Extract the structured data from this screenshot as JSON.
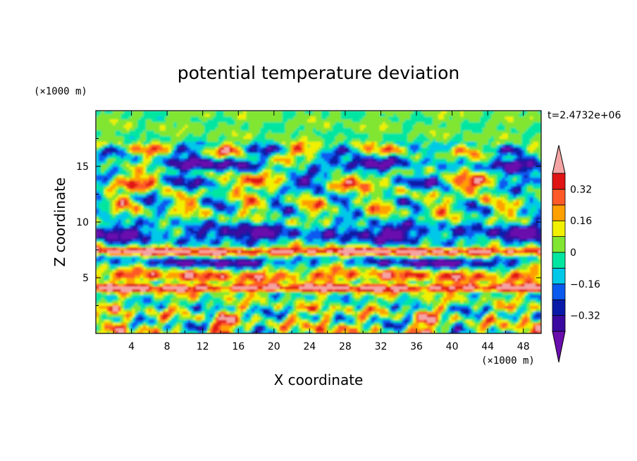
{
  "chart_data": {
    "type": "heatmap",
    "title": "potential temperature deviation",
    "xlabel": "X coordinate",
    "ylabel": "Z coordinate",
    "x_unit": "(×1000 m)",
    "y_unit": "(×1000 m)",
    "time_label": "t=2.4732e+06",
    "xlim": [
      0,
      50
    ],
    "ylim": [
      0,
      20
    ],
    "x_ticks": [
      4,
      8,
      12,
      16,
      20,
      24,
      28,
      32,
      36,
      40,
      44,
      48
    ],
    "y_ticks": [
      5,
      10,
      15
    ],
    "colorbar": {
      "levels": [
        -0.4,
        -0.32,
        -0.24,
        -0.16,
        -0.08,
        0,
        0.08,
        0.16,
        0.24,
        0.32,
        0.4
      ],
      "tick_labels": [
        "0.32",
        "0.16",
        "0",
        "−0.16",
        "−0.32"
      ],
      "tick_values": [
        0.32,
        0.16,
        0,
        -0.16,
        -0.32
      ],
      "colors_low_to_high": [
        "#6a0dad",
        "#3a0aa0",
        "#0a1aa8",
        "#0a5af0",
        "#00c8e8",
        "#00e6a0",
        "#80e632",
        "#f0f000",
        "#ffa000",
        "#ff5a28",
        "#e01414",
        "#f4a4a4"
      ]
    },
    "bands": [
      {
        "zmin": 0,
        "zmax": 2,
        "dominant": "mixed",
        "note": "plumes of red/yellow over cyan/purple"
      },
      {
        "zmin": 3.5,
        "zmax": 4.5,
        "dominant": 0.4
      },
      {
        "zmin": 4.5,
        "zmax": 6,
        "dominant": 0.24
      },
      {
        "zmin": 6,
        "zmax": 7,
        "dominant": -0.36
      },
      {
        "zmin": 7,
        "zmax": 7.8,
        "dominant": 0.36
      },
      {
        "zmin": 8,
        "zmax": 10,
        "dominant": -0.36
      },
      {
        "zmin": 14.5,
        "zmax": 16,
        "dominant": -0.36
      },
      {
        "zmin": 17,
        "zmax": 20,
        "dominant": 0.04
      }
    ]
  }
}
